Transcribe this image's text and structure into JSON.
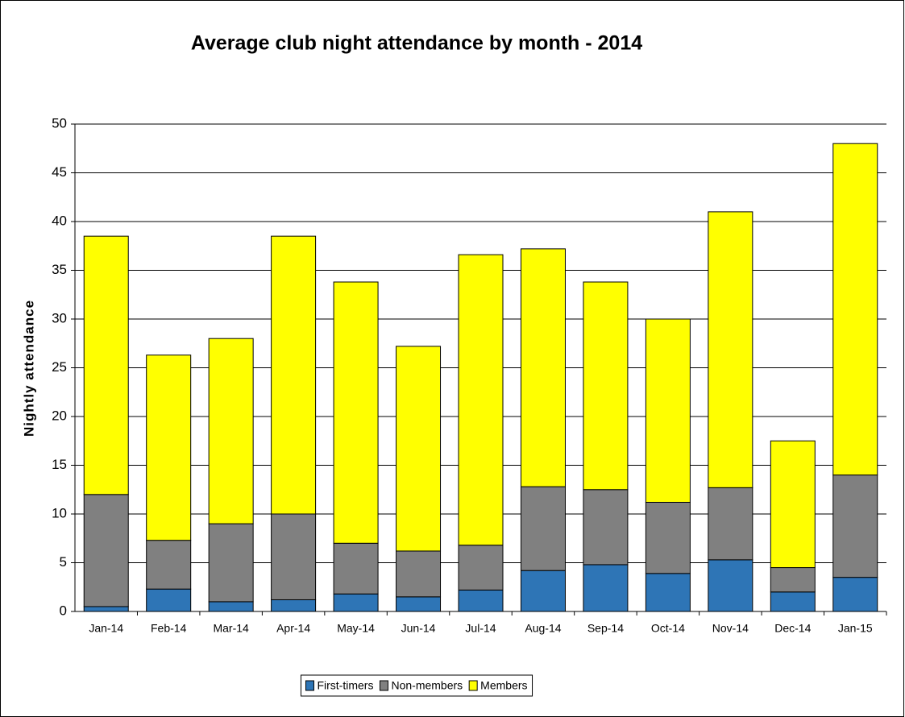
{
  "chart_data": {
    "type": "stacked_bar",
    "title": "Average club night attendance by month - 2014",
    "y_label": "Nightly attendance",
    "categories": [
      "Jan-14",
      "Feb-14",
      "Mar-14",
      "Apr-14",
      "May-14",
      "Jun-14",
      "Jul-14",
      "Aug-14",
      "Sep-14",
      "Oct-14",
      "Nov-14",
      "Dec-14",
      "Jan-15"
    ],
    "series": [
      {
        "name": "First-timers",
        "color": "#2e75b6",
        "values": [
          0.5,
          2.3,
          1.0,
          1.2,
          1.8,
          1.5,
          2.2,
          4.2,
          4.8,
          3.9,
          5.3,
          2.0,
          3.5
        ]
      },
      {
        "name": "Non-members",
        "color": "#808080",
        "values": [
          11.5,
          5.0,
          8.0,
          8.8,
          5.2,
          4.7,
          4.6,
          8.6,
          7.7,
          7.3,
          7.4,
          2.5,
          10.5
        ]
      },
      {
        "name": "Members",
        "color": "#ffff00",
        "values": [
          26.5,
          19.0,
          19.0,
          28.5,
          26.8,
          21.0,
          29.8,
          24.4,
          21.3,
          18.8,
          28.3,
          13.0,
          34.0
        ]
      }
    ],
    "ylim": [
      0,
      50
    ],
    "yticks": [
      0,
      5,
      10,
      15,
      20,
      25,
      30,
      35,
      40,
      45,
      50
    ],
    "grid": true,
    "legend": "bottom"
  }
}
